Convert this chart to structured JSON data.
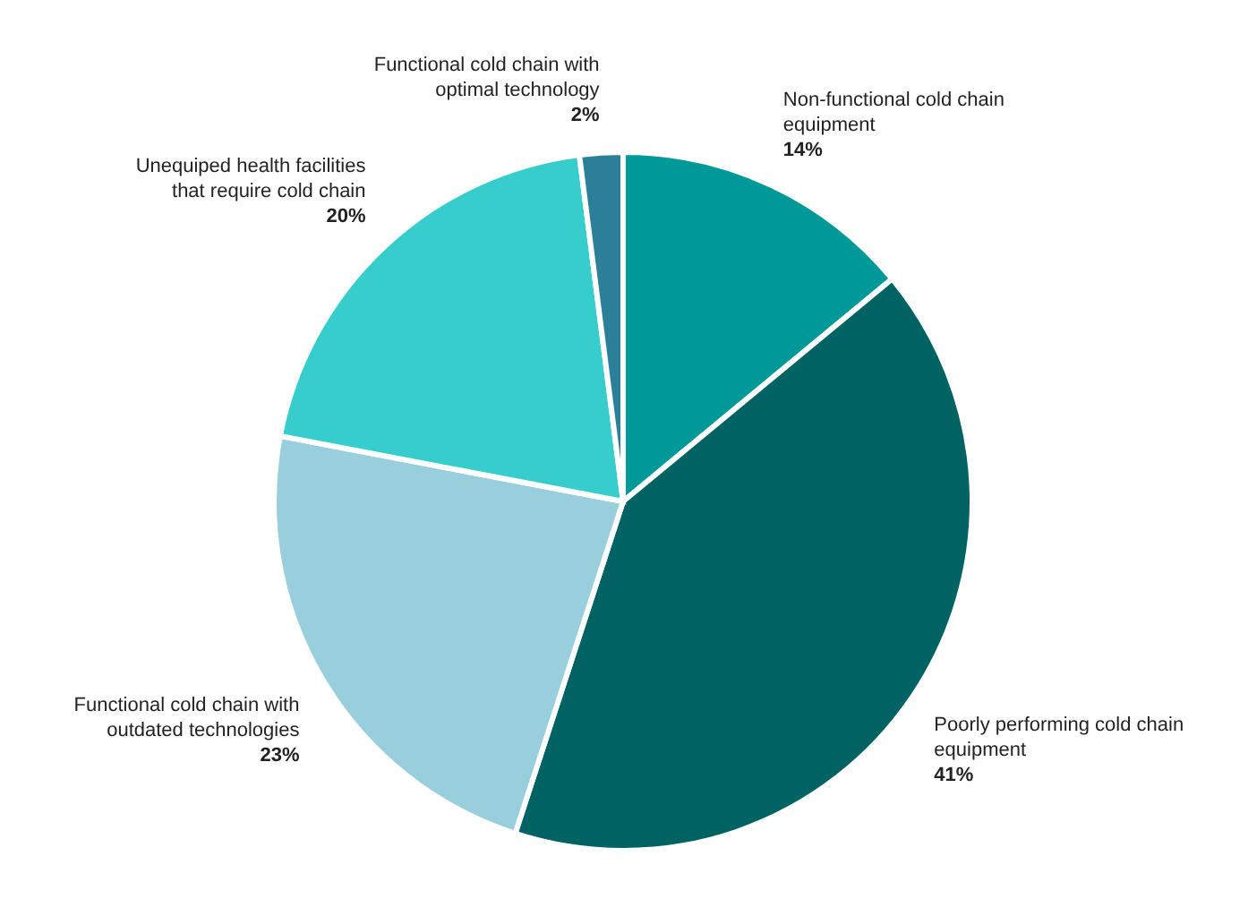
{
  "chart_data": {
    "type": "pie",
    "categories": [
      "Non-functional cold chain equipment",
      "Poorly performing cold chain equipment",
      "Functional cold chain with outdated technologies",
      "Unequiped health facilities that require cold chain",
      "Functional cold chain with optimal technology"
    ],
    "values": [
      14,
      41,
      23,
      20,
      2
    ],
    "colors": [
      "#009999",
      "#006363",
      "#99cfdd",
      "#38cdcd",
      "#2b7f99"
    ],
    "value_labels": [
      "14%",
      "41%",
      "23%",
      "20%",
      "2%"
    ]
  }
}
